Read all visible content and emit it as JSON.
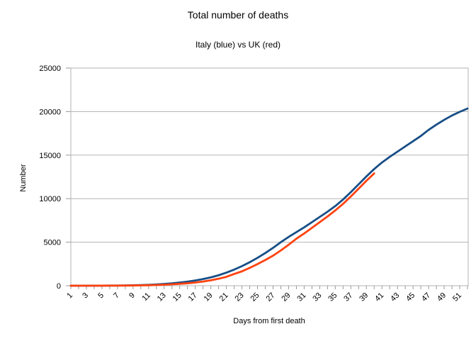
{
  "page": {
    "background": "#ffffff"
  },
  "chart_data": {
    "type": "line",
    "title": "Total number of deaths",
    "subtitle": "Italy (blue) vs UK (red)",
    "xlabel": "Days from first death",
    "ylabel": "Number",
    "x_days": [
      1,
      2,
      3,
      4,
      5,
      6,
      7,
      8,
      9,
      10,
      11,
      12,
      13,
      14,
      15,
      16,
      17,
      18,
      19,
      20,
      21,
      22,
      23,
      24,
      25,
      26,
      27,
      28,
      29,
      30,
      31,
      32,
      33,
      34,
      35,
      36,
      37,
      38,
      39,
      40,
      41,
      42,
      43,
      44,
      45,
      46,
      47,
      48,
      49,
      50,
      51,
      52
    ],
    "x_labeled_ticks": [
      1,
      3,
      5,
      7,
      9,
      11,
      13,
      15,
      17,
      19,
      21,
      23,
      25,
      27,
      29,
      31,
      33,
      35,
      37,
      39,
      41,
      43,
      45,
      47,
      49,
      51
    ],
    "ylim": [
      0,
      25000
    ],
    "yticks": [
      0,
      5000,
      10000,
      15000,
      20000,
      25000
    ],
    "grid_on": true,
    "legend": "none",
    "grid_color": "#b3b3b3",
    "tick_color": "#999999",
    "series": [
      {
        "name": "Italy",
        "color": "#174E86",
        "values": [
          1,
          2,
          3,
          6,
          10,
          15,
          22,
          30,
          45,
          65,
          95,
          140,
          200,
          270,
          360,
          470,
          600,
          760,
          960,
          1200,
          1500,
          1850,
          2250,
          2700,
          3200,
          3750,
          4350,
          5000,
          5600,
          6150,
          6700,
          7300,
          7900,
          8500,
          9150,
          9900,
          10750,
          11650,
          12550,
          13400,
          14150,
          14800,
          15400,
          16000,
          16600,
          17200,
          17900,
          18500,
          19050,
          19550,
          19970,
          20350
        ]
      },
      {
        "name": "UK",
        "color": "#FF420E",
        "values": [
          1,
          1,
          2,
          3,
          5,
          8,
          12,
          17,
          25,
          38,
          55,
          80,
          115,
          160,
          215,
          280,
          370,
          480,
          620,
          800,
          1020,
          1350,
          1650,
          2050,
          2480,
          2950,
          3450,
          4050,
          4700,
          5400,
          6000,
          6650,
          7300,
          7950,
          8650,
          9400,
          10250,
          11150,
          12050,
          12900
        ]
      }
    ]
  }
}
